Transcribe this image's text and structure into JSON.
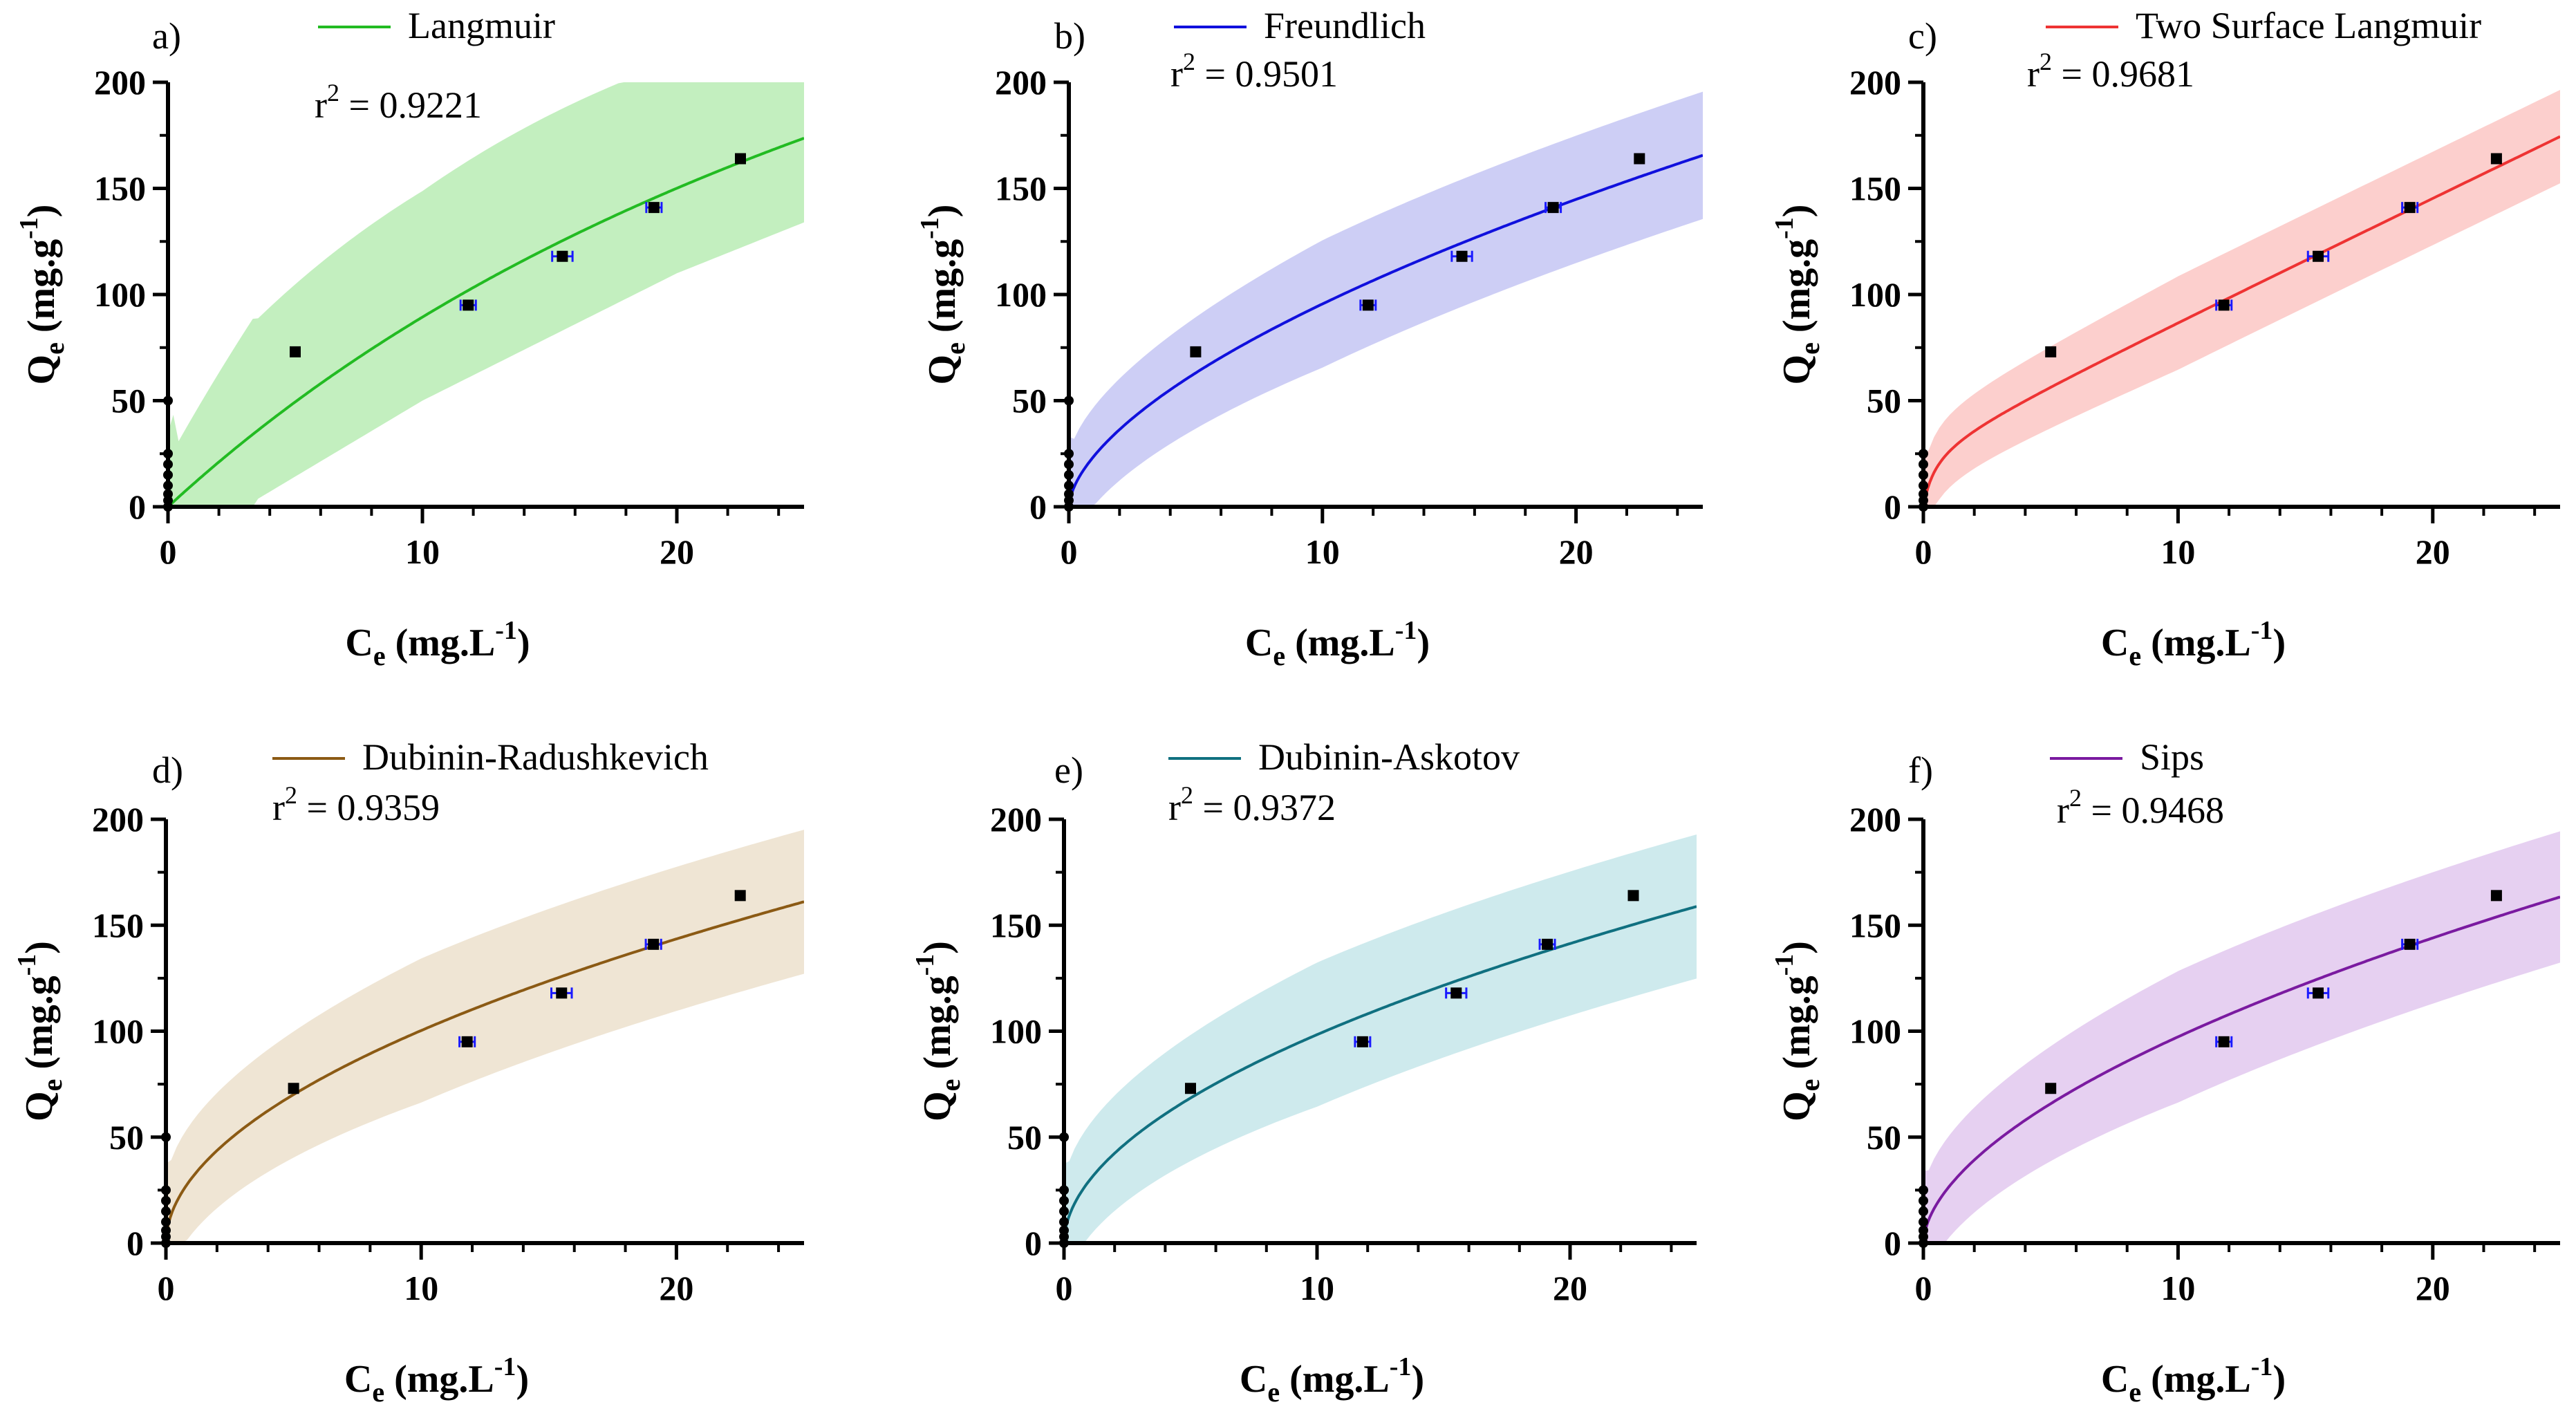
{
  "figure": {
    "x_axis_title": {
      "main": "C",
      "sub": "e",
      "rest": " (mg.L",
      "sup": "-1",
      "close": ")"
    },
    "y_axis_title": {
      "main": "Q",
      "sub": "e",
      "rest": " (mg.g",
      "sup": "-1",
      "close": ")"
    },
    "r2_prefix": "r",
    "r2_power": "2",
    "r2_equals": " = ",
    "marker_color": "#000000",
    "errorbar_color": "#1a1aff"
  },
  "chart_data": [
    {
      "type": "line",
      "panel_label": "a)",
      "title": "",
      "legend": "Langmuir",
      "r2": "0.9221",
      "color": "#22bb22",
      "band_color": "#b8ecb4",
      "model": "langmuir",
      "params": {
        "qmax": 468,
        "K": 0.0236
      },
      "band_lower": [
        0,
        3.5,
        50,
        110,
        134
      ],
      "xlim": [
        0,
        25
      ],
      "ylim": [
        0,
        200
      ],
      "xticks": [
        0,
        10,
        20
      ],
      "yticks": [
        0,
        50,
        100,
        150,
        200
      ],
      "xlabel": "Ce (mg.L-1)",
      "ylabel": "Qe (mg.g-1)",
      "points": [
        {
          "x": 0,
          "y": 0
        },
        {
          "x": 0,
          "y": 3
        },
        {
          "x": 0,
          "y": 6
        },
        {
          "x": 0,
          "y": 10
        },
        {
          "x": 0,
          "y": 15
        },
        {
          "x": 0,
          "y": 20
        },
        {
          "x": 0,
          "y": 25
        },
        {
          "x": 0,
          "y": 50
        },
        {
          "x": 5,
          "y": 73
        },
        {
          "x": 11.8,
          "y": 95,
          "xerr": 0.3
        },
        {
          "x": 15.5,
          "y": 118,
          "xerr": 0.4
        },
        {
          "x": 19.1,
          "y": 141,
          "xerr": 0.3
        },
        {
          "x": 22.5,
          "y": 164
        }
      ],
      "band_upper_clip": 200
    },
    {
      "type": "line",
      "panel_label": "b)",
      "title": "",
      "legend": "Freundlich",
      "r2": "0.9501",
      "color": "#1010dd",
      "band_color": "#c4c6f3",
      "model": "freundlich",
      "params": {
        "K": 24.0,
        "n": 0.6
      },
      "band_offset": 30,
      "xlim": [
        0,
        25
      ],
      "ylim": [
        0,
        200
      ],
      "xticks": [
        0,
        10,
        20
      ],
      "yticks": [
        0,
        50,
        100,
        150,
        200
      ],
      "xlabel": "Ce (mg.L-1)",
      "ylabel": "Qe (mg.g-1)",
      "points": [
        {
          "x": 0,
          "y": 0
        },
        {
          "x": 0,
          "y": 3
        },
        {
          "x": 0,
          "y": 6
        },
        {
          "x": 0,
          "y": 10
        },
        {
          "x": 0,
          "y": 15
        },
        {
          "x": 0,
          "y": 20
        },
        {
          "x": 0,
          "y": 25
        },
        {
          "x": 0,
          "y": 50
        },
        {
          "x": 5,
          "y": 73
        },
        {
          "x": 11.8,
          "y": 95,
          "xerr": 0.3
        },
        {
          "x": 15.5,
          "y": 118,
          "xerr": 0.4
        },
        {
          "x": 19.1,
          "y": 141,
          "xerr": 0.3
        },
        {
          "x": 22.5,
          "y": 164
        }
      ]
    },
    {
      "type": "line",
      "panel_label": "c)",
      "title": "",
      "legend": "Two Surface Langmuir",
      "r2": "0.9681",
      "color": "#ee3333",
      "band_color": "#fbc7c4",
      "model": "twosurface",
      "params": {
        "q1": 30,
        "K1": 2.0,
        "slope": 5.8
      },
      "band_offset": 22,
      "xlim": [
        0,
        25
      ],
      "ylim": [
        0,
        200
      ],
      "xticks": [
        0,
        10,
        20
      ],
      "yticks": [
        0,
        50,
        100,
        150,
        200
      ],
      "xlabel": "Ce (mg.L-1)",
      "ylabel": "Qe (mg.g-1)",
      "points": [
        {
          "x": 0,
          "y": 0
        },
        {
          "x": 0,
          "y": 3
        },
        {
          "x": 0,
          "y": 6
        },
        {
          "x": 0,
          "y": 10
        },
        {
          "x": 0,
          "y": 15
        },
        {
          "x": 0,
          "y": 20
        },
        {
          "x": 0,
          "y": 25
        },
        {
          "x": 5,
          "y": 73
        },
        {
          "x": 11.8,
          "y": 95,
          "xerr": 0.3
        },
        {
          "x": 15.5,
          "y": 118,
          "xerr": 0.4
        },
        {
          "x": 19.1,
          "y": 141,
          "xerr": 0.3
        },
        {
          "x": 22.5,
          "y": 164
        }
      ]
    },
    {
      "type": "line",
      "panel_label": "d)",
      "title": "",
      "legend": "Dubinin-Radushkevich",
      "r2": "0.9359",
      "color": "#8b5a14",
      "band_color": "#ece0cc",
      "model": "freundlich",
      "params": {
        "K": 30.5,
        "n": 0.517
      },
      "band_offset": 34,
      "xlim": [
        0,
        25
      ],
      "ylim": [
        0,
        200
      ],
      "xticks": [
        0,
        10,
        20
      ],
      "yticks": [
        0,
        50,
        100,
        150,
        200
      ],
      "xlabel": "Ce (mg.L-1)",
      "ylabel": "Qe (mg.g-1)",
      "points": [
        {
          "x": 0,
          "y": 0
        },
        {
          "x": 0,
          "y": 3
        },
        {
          "x": 0,
          "y": 6
        },
        {
          "x": 0,
          "y": 10
        },
        {
          "x": 0,
          "y": 15
        },
        {
          "x": 0,
          "y": 20
        },
        {
          "x": 0,
          "y": 25
        },
        {
          "x": 0,
          "y": 50
        },
        {
          "x": 5,
          "y": 73
        },
        {
          "x": 11.8,
          "y": 95,
          "xerr": 0.3
        },
        {
          "x": 15.5,
          "y": 118,
          "xerr": 0.4
        },
        {
          "x": 19.1,
          "y": 141,
          "xerr": 0.3
        },
        {
          "x": 22.5,
          "y": 164
        }
      ]
    },
    {
      "type": "line",
      "panel_label": "e)",
      "title": "",
      "legend": "Dubinin-Askotov",
      "r2": "0.9372",
      "color": "#107080",
      "band_color": "#c6e6ea",
      "model": "freundlich",
      "params": {
        "K": 29.5,
        "n": 0.523
      },
      "band_offset": 34,
      "xlim": [
        0,
        25
      ],
      "ylim": [
        0,
        200
      ],
      "xticks": [
        0,
        10,
        20
      ],
      "yticks": [
        0,
        50,
        100,
        150,
        200
      ],
      "xlabel": "Ce (mg.L-1)",
      "ylabel": "Qe (mg.g-1)",
      "points": [
        {
          "x": 0,
          "y": 0
        },
        {
          "x": 0,
          "y": 3
        },
        {
          "x": 0,
          "y": 6
        },
        {
          "x": 0,
          "y": 10
        },
        {
          "x": 0,
          "y": 15
        },
        {
          "x": 0,
          "y": 20
        },
        {
          "x": 0,
          "y": 25
        },
        {
          "x": 0,
          "y": 50
        },
        {
          "x": 5,
          "y": 73
        },
        {
          "x": 11.8,
          "y": 95,
          "xerr": 0.3
        },
        {
          "x": 15.5,
          "y": 118,
          "xerr": 0.4
        },
        {
          "x": 19.1,
          "y": 141,
          "xerr": 0.3
        },
        {
          "x": 22.5,
          "y": 164
        }
      ]
    },
    {
      "type": "line",
      "panel_label": "f)",
      "title": "",
      "legend": "Sips",
      "r2": "0.9468",
      "color": "#7a1aa0",
      "band_color": "#e2c8ef",
      "model": "freundlich",
      "params": {
        "K": 26.5,
        "n": 0.565
      },
      "band_offset": 31,
      "xlim": [
        0,
        25
      ],
      "ylim": [
        0,
        200
      ],
      "xticks": [
        0,
        10,
        20
      ],
      "yticks": [
        0,
        50,
        100,
        150,
        200
      ],
      "xlabel": "Ce (mg.L-1)",
      "ylabel": "Qe (mg.g-1)",
      "points": [
        {
          "x": 0,
          "y": 0
        },
        {
          "x": 0,
          "y": 3
        },
        {
          "x": 0,
          "y": 6
        },
        {
          "x": 0,
          "y": 10
        },
        {
          "x": 0,
          "y": 15
        },
        {
          "x": 0,
          "y": 20
        },
        {
          "x": 0,
          "y": 25
        },
        {
          "x": 5,
          "y": 73
        },
        {
          "x": 11.8,
          "y": 95,
          "xerr": 0.3
        },
        {
          "x": 15.5,
          "y": 118,
          "xerr": 0.4
        },
        {
          "x": 19.1,
          "y": 141,
          "xerr": 0.3
        },
        {
          "x": 22.5,
          "y": 164
        }
      ]
    }
  ]
}
